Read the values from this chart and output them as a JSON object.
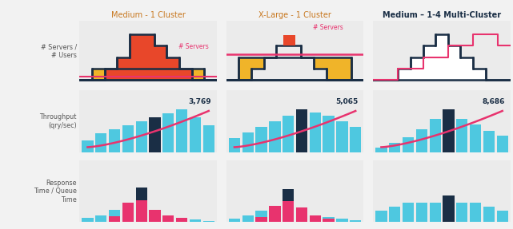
{
  "title_col1": "Medium - 1 Cluster",
  "title_col2": "X-Large - 1 Cluster",
  "title_col3": "Medium – 1-4 Multi-Cluster",
  "row_labels": [
    "# Servers /\n# Users",
    "Throughput\n(qry/sec)",
    "Response\nTime / Queue\nTime"
  ],
  "bg_color": "#f2f2f2",
  "panel_bg": "#ebebeb",
  "colors": {
    "red_orange": "#e8472a",
    "yellow": "#f0b429",
    "dark_navy": "#1a2e45",
    "cyan_light": "#4ec8e0",
    "pink": "#e8336e",
    "white": "#ffffff"
  },
  "y_yellow1": [
    0,
    1,
    1,
    1,
    1,
    1,
    1,
    1,
    1,
    1,
    0
  ],
  "y_red1": [
    0,
    0,
    1,
    2,
    4,
    4,
    3,
    2,
    1,
    0,
    0
  ],
  "y_yel2": [
    0,
    2,
    2,
    2,
    2,
    2,
    2,
    2,
    2,
    2,
    0
  ],
  "y_wh2": [
    0,
    0,
    1,
    2,
    3,
    3,
    2,
    1,
    0,
    0,
    0
  ],
  "y_out3": [
    0,
    0,
    1,
    2,
    3,
    4,
    3,
    2,
    1,
    0,
    0
  ],
  "y_pink3": [
    0,
    0,
    1,
    1,
    2,
    2,
    3,
    3,
    4,
    4,
    3
  ],
  "throughput_col1": {
    "bars": [
      0.3,
      0.5,
      0.6,
      0.7,
      0.8,
      0.9,
      1.0,
      1.1,
      0.9,
      0.7
    ],
    "navy_idx": 5,
    "value": "3,769"
  },
  "throughput_col2": {
    "bars": [
      0.5,
      0.7,
      0.9,
      1.1,
      1.3,
      1.5,
      1.4,
      1.3,
      1.1,
      0.9
    ],
    "navy_idx": 5,
    "value": "5,065"
  },
  "throughput_col3": {
    "bars": [
      0.3,
      0.6,
      1.0,
      1.5,
      2.2,
      2.8,
      2.2,
      1.8,
      1.4,
      1.1
    ],
    "navy_idx": 5,
    "value": "8,686"
  },
  "response_col1": {
    "cyan_bars": [
      0.3,
      0.5,
      0.9,
      1.2,
      0.8,
      0.6,
      0.4,
      0.3,
      0.2,
      0.1
    ],
    "pink_bars": [
      0.0,
      0.0,
      0.4,
      1.4,
      1.6,
      0.9,
      0.5,
      0.3,
      0.0,
      0.0
    ],
    "navy_bars": [
      0.0,
      0.0,
      0.0,
      0.0,
      0.9,
      0.0,
      0.0,
      0.0,
      0.0,
      0.0
    ]
  },
  "response_col2": {
    "cyan_bars": [
      0.2,
      0.4,
      0.7,
      1.0,
      0.8,
      0.6,
      0.4,
      0.3,
      0.2,
      0.1
    ],
    "pink_bars": [
      0.0,
      0.0,
      0.3,
      1.0,
      1.3,
      0.9,
      0.4,
      0.2,
      0.0,
      0.0
    ],
    "navy_bars": [
      0.0,
      0.0,
      0.0,
      0.0,
      0.7,
      0.0,
      0.0,
      0.0,
      0.0,
      0.0
    ]
  },
  "response_col3": {
    "cyan_bars": [
      0.3,
      0.4,
      0.5,
      0.5,
      0.5,
      0.5,
      0.5,
      0.5,
      0.4,
      0.3
    ],
    "pink_bars": [
      0.0,
      0.0,
      0.0,
      0.0,
      0.0,
      0.0,
      0.0,
      0.0,
      0.0,
      0.0
    ],
    "navy_bars": [
      0.0,
      0.0,
      0.0,
      0.0,
      0.0,
      0.7,
      0.0,
      0.0,
      0.0,
      0.0
    ]
  }
}
